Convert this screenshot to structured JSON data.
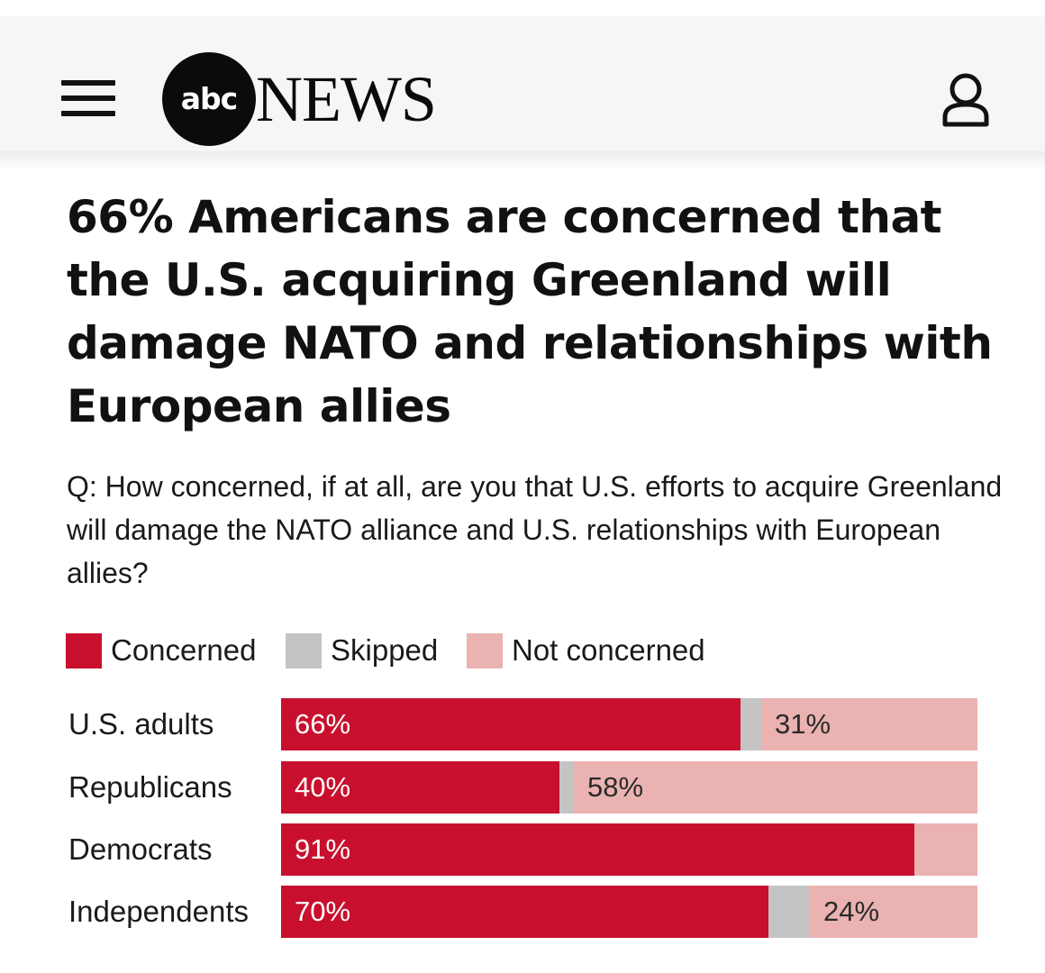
{
  "header": {
    "logo_abc": "abc",
    "logo_news": "NEWS"
  },
  "article": {
    "headline": "66% Americans are concerned that the U.S. acquiring Greenland will damage NATO and relationships with European allies",
    "question": "Q: How concerned, if at all, are you that U.S. efforts to acquire Greenland will damage the NATO alliance and U.S. relationships with European allies?"
  },
  "colors": {
    "concerned": "#c8102e",
    "skipped": "#c4c4c4",
    "not_concerned": "#ebb2b2"
  },
  "chart_data": {
    "type": "bar",
    "orientation": "horizontal",
    "stacked": true,
    "categories": [
      "U.S. adults",
      "Republicans",
      "Democrats",
      "Independents"
    ],
    "series": [
      {
        "name": "Concerned",
        "values": [
          66,
          40,
          91,
          70
        ],
        "value_labels": [
          "66%",
          "40%",
          "91%",
          "70%"
        ]
      },
      {
        "name": "Skipped",
        "values": [
          3,
          2,
          0,
          6
        ],
        "value_labels": [
          "",
          "",
          "",
          ""
        ]
      },
      {
        "name": "Not concerned",
        "values": [
          31,
          58,
          9,
          24
        ],
        "value_labels": [
          "31%",
          "58%",
          "",
          "24%"
        ]
      }
    ],
    "xlim": [
      0,
      100
    ],
    "legend": [
      "Concerned",
      "Skipped",
      "Not concerned"
    ],
    "legend_position": "top-left"
  }
}
